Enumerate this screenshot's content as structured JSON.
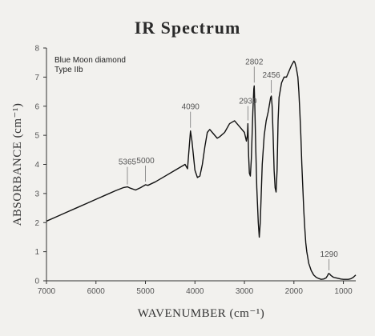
{
  "chart_data": {
    "type": "line",
    "title": "IR Spectrum",
    "xlabel": "WAVENUMBER (cm⁻¹)",
    "ylabel": "ABSORBANCE (cm⁻¹)",
    "xlim": [
      7000,
      750
    ],
    "ylim": [
      0,
      8
    ],
    "x_reversed": true,
    "xticks": [
      7000,
      6000,
      5000,
      4000,
      3000,
      2000,
      1000
    ],
    "yticks": [
      0,
      1,
      2,
      3,
      4,
      5,
      6,
      7,
      8
    ],
    "grid": false,
    "annotation_text": [
      "Blue Moon diamond",
      "Type IIb"
    ],
    "peak_labels": [
      {
        "label": "5365",
        "x": 5365,
        "y": 3.2
      },
      {
        "label": "5000",
        "x": 5000,
        "y": 3.3
      },
      {
        "label": "4090",
        "x": 4090,
        "y": 5.15
      },
      {
        "label": "2930",
        "x": 2930,
        "y": 5.4
      },
      {
        "label": "2802",
        "x": 2802,
        "y": 6.7
      },
      {
        "label": "2456",
        "x": 2456,
        "y": 6.35
      },
      {
        "label": "1290",
        "x": 1290,
        "y": 0.25
      }
    ],
    "series": [
      {
        "x": [
          7000,
          6800,
          6600,
          6400,
          6200,
          6000,
          5800,
          5600,
          5450,
          5365,
          5300,
          5200,
          5100,
          5000,
          4950,
          4800,
          4600,
          4400,
          4300,
          4200,
          4150,
          4120,
          4090,
          4060,
          4000,
          3950,
          3900,
          3850,
          3800,
          3750,
          3700,
          3650,
          3600,
          3550,
          3500,
          3400,
          3300,
          3200,
          3100,
          3000,
          2960,
          2940,
          2930,
          2915,
          2900,
          2880,
          2860,
          2830,
          2810,
          2802,
          2790,
          2770,
          2750,
          2720,
          2700,
          2680,
          2660,
          2640,
          2600,
          2560,
          2520,
          2490,
          2470,
          2456,
          2440,
          2420,
          2400,
          2380,
          2360,
          2340,
          2320,
          2300,
          2250,
          2200,
          2150,
          2100,
          2050,
          2000,
          1980,
          1950,
          1920,
          1900,
          1880,
          1860,
          1840,
          1820,
          1800,
          1780,
          1760,
          1740,
          1720,
          1700,
          1650,
          1600,
          1550,
          1500,
          1450,
          1400,
          1350,
          1320,
          1300,
          1290,
          1270,
          1250,
          1200,
          1150,
          1100,
          1050,
          1000,
          950,
          900,
          850,
          800,
          750
        ],
        "y": [
          2.05,
          2.2,
          2.35,
          2.5,
          2.65,
          2.8,
          2.95,
          3.1,
          3.2,
          3.23,
          3.18,
          3.12,
          3.2,
          3.3,
          3.28,
          3.4,
          3.6,
          3.8,
          3.9,
          4.0,
          3.85,
          4.5,
          5.15,
          4.8,
          3.8,
          3.55,
          3.6,
          4.0,
          4.6,
          5.1,
          5.2,
          5.1,
          5.0,
          4.9,
          4.95,
          5.1,
          5.4,
          5.5,
          5.3,
          5.1,
          4.8,
          5.0,
          5.4,
          4.3,
          3.7,
          3.6,
          4.2,
          5.8,
          6.6,
          6.7,
          6.0,
          4.5,
          3.2,
          2.0,
          1.5,
          2.0,
          3.0,
          4.0,
          5.0,
          5.5,
          5.8,
          6.1,
          6.3,
          6.35,
          6.0,
          5.0,
          3.8,
          3.2,
          3.05,
          3.8,
          5.5,
          6.3,
          6.8,
          7.0,
          7.0,
          7.2,
          7.4,
          7.55,
          7.5,
          7.3,
          7.0,
          6.5,
          5.8,
          5.0,
          4.0,
          3.2,
          2.4,
          1.8,
          1.3,
          1.0,
          0.8,
          0.6,
          0.35,
          0.2,
          0.12,
          0.08,
          0.05,
          0.06,
          0.1,
          0.18,
          0.25,
          0.25,
          0.22,
          0.18,
          0.12,
          0.1,
          0.08,
          0.06,
          0.05,
          0.05,
          0.05,
          0.07,
          0.12,
          0.2
        ]
      }
    ]
  }
}
